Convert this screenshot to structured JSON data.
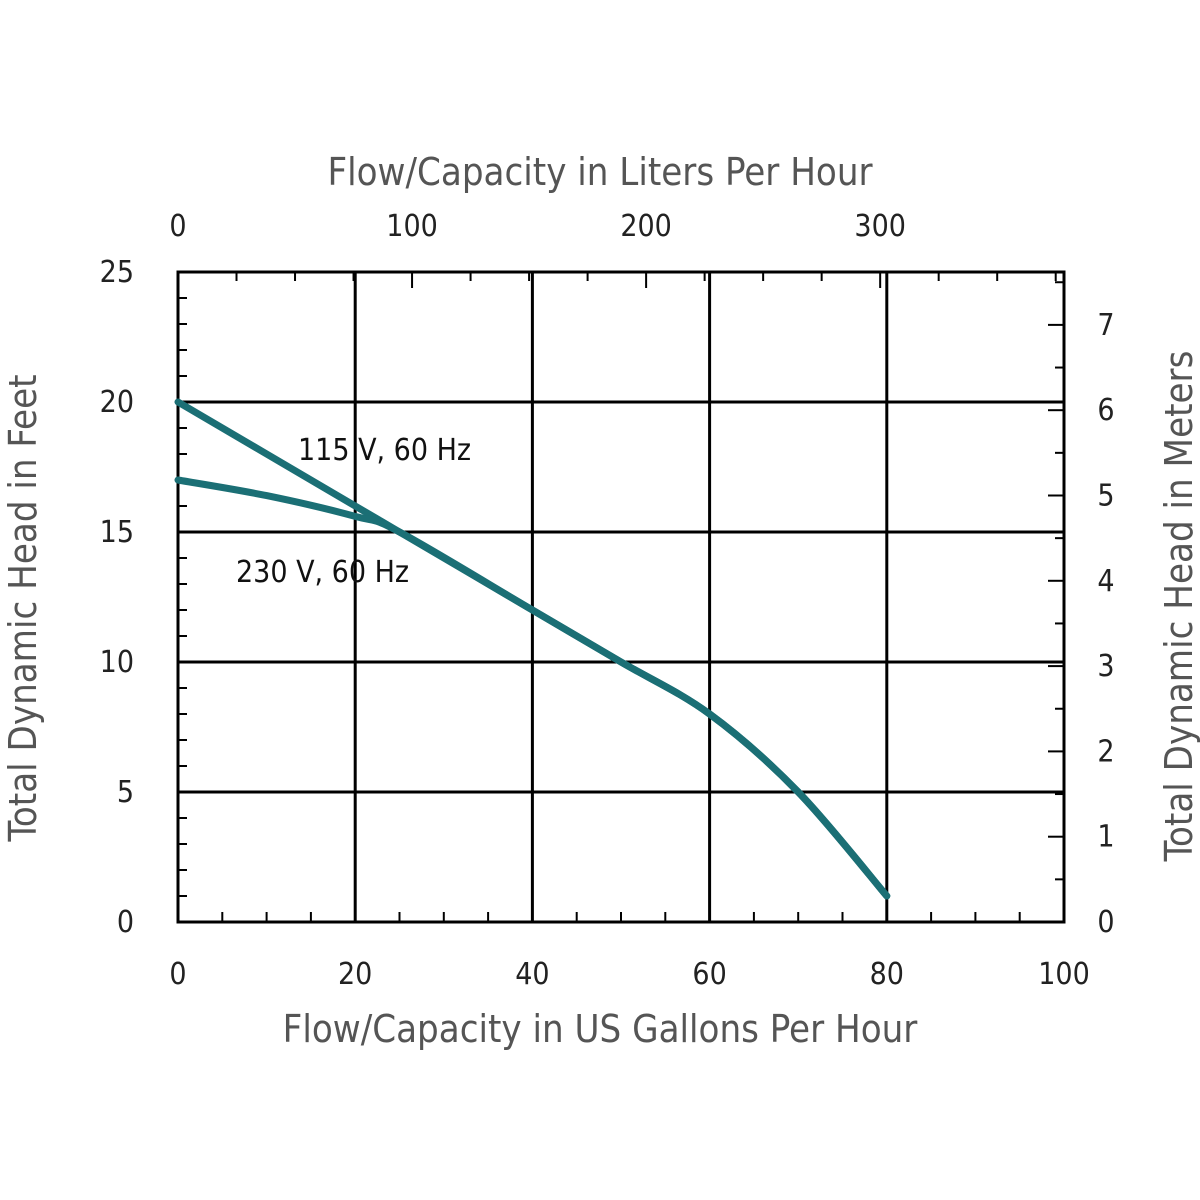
{
  "chart_data": {
    "type": "line",
    "title": "",
    "x_top_label": "Flow/Capacity in Liters Per Hour",
    "x_bottom_label": "Flow/Capacity in US Gallons Per Hour",
    "y_left_label": "Total Dynamic Head in Feet",
    "y_right_label": "Total Dynamic Head in Meters",
    "xlim": [
      0,
      100
    ],
    "ylim": [
      0,
      25
    ],
    "right_ylim_meters": [
      0,
      7.62
    ],
    "x_ticks": [
      "0",
      "20",
      "40",
      "60",
      "80",
      "100"
    ],
    "y_ticks": [
      "0",
      "5",
      "10",
      "15",
      "20",
      "25"
    ],
    "x_top_ticks": [
      "0",
      "100",
      "200",
      "300"
    ],
    "y_right_ticks": [
      "0",
      "1",
      "2",
      "3",
      "4",
      "5",
      "6",
      "7"
    ],
    "series": [
      {
        "name": "115 V, 60 Hz",
        "color": "#1b6f75",
        "x": [
          0,
          20,
          25,
          40,
          50,
          60,
          70,
          80
        ],
        "y": [
          20,
          16,
          15,
          12,
          10,
          8,
          5,
          1
        ]
      },
      {
        "name": "230 V, 60 Hz",
        "color": "#1b6f75",
        "x": [
          0,
          10,
          20,
          25,
          40,
          50,
          60,
          70,
          80
        ],
        "y": [
          17,
          16.4,
          15.6,
          15,
          12,
          10,
          8,
          5,
          1
        ]
      }
    ],
    "grid": true
  }
}
